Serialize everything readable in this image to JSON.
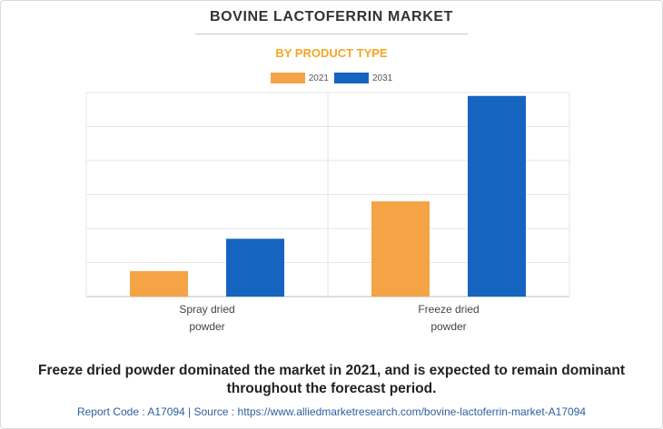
{
  "header": {
    "title": "BOVINE LACTOFERRIN MARKET",
    "subtitle": "BY PRODUCT TYPE"
  },
  "chart_data": {
    "type": "bar",
    "categories": [
      [
        "Spray dried",
        "powder"
      ],
      [
        "Freeze dried",
        "powder"
      ]
    ],
    "series": [
      {
        "name": "2021",
        "color": "#f4a446",
        "values": [
          7.5,
          28
        ]
      },
      {
        "name": "2031",
        "color": "#1565c0",
        "values": [
          17,
          59
        ]
      }
    ],
    "ylim": [
      0,
      60
    ],
    "gridlines": [
      0,
      10,
      20,
      30,
      40,
      50,
      60
    ],
    "grid": true,
    "legend_position": "top-center"
  },
  "caption": "Freeze dried powder dominated the market in 2021, and is expected to remain dominant throughout the forecast period.",
  "footer": "Report Code : A17094  |  Source : https://www.alliedmarketresearch.com/bovine-lactoferrin-market-A17094"
}
